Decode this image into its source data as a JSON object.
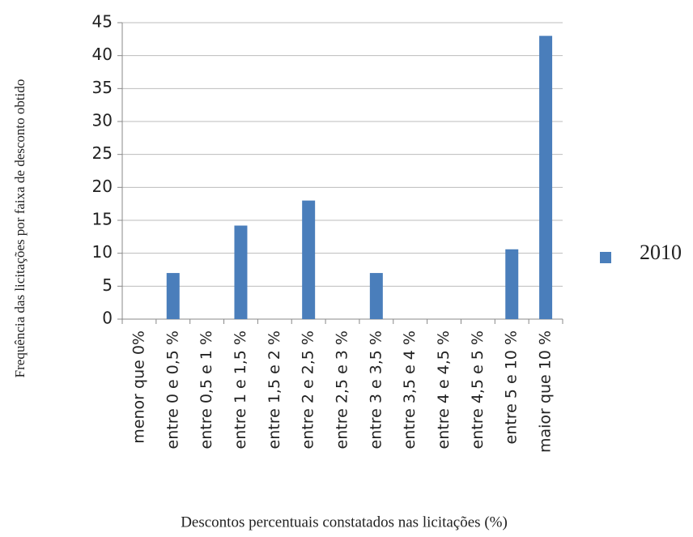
{
  "chart_data": {
    "type": "bar",
    "y_axis_title": "Frequência das licitações por faixa de desconto obtido",
    "x_axis_title": "Descontos percentuais constatados nas licitações (%)",
    "categories": [
      "menor que 0%",
      "entre 0 e 0,5 %",
      "entre 0,5 e 1 %",
      "entre 1 e 1,5 %",
      "entre 1,5 e 2 %",
      "entre 2 e 2,5 %",
      "entre 2,5 e 3 %",
      "entre 3 e 3,5 %",
      "entre 3,5 e 4 %",
      "entre 4 e 4,5 %",
      "entre 4,5 e 5 %",
      "entre 5 e 10 %",
      "maior que 10 %"
    ],
    "series": [
      {
        "name": "2010",
        "color": "#4a7ebb",
        "values": [
          0,
          7,
          0,
          14.2,
          0,
          18,
          0,
          7,
          0,
          0,
          0,
          10.6,
          43
        ]
      }
    ],
    "ylim": [
      0,
      45
    ],
    "yticks": [
      0,
      5,
      10,
      15,
      20,
      25,
      30,
      35,
      40,
      45
    ],
    "grid": true,
    "legend": "right"
  }
}
